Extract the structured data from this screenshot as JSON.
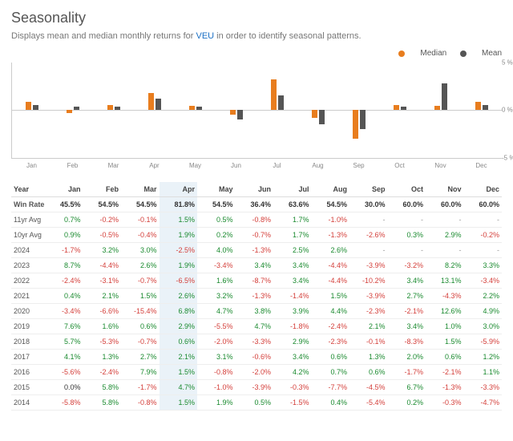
{
  "title": "Seasonality",
  "subtitle_pre": "Displays mean and median monthly returns for ",
  "ticker": "VEU",
  "subtitle_post": " in order to identify seasonal patterns.",
  "legend": {
    "median": "Median",
    "mean": "Mean"
  },
  "colors": {
    "median": "#e87d1e",
    "mean": "#555555",
    "pos": "#1a8a2f",
    "neg": "#d43f3a",
    "highlight_bg": "#eaf2f8"
  },
  "chart": {
    "months": [
      "Jan",
      "Feb",
      "Mar",
      "Apr",
      "May",
      "Jun",
      "Jul",
      "Aug",
      "Sep",
      "Oct",
      "Nov",
      "Dec"
    ],
    "ymin": -5,
    "ymax": 5,
    "ylabels": [
      "5 %",
      "0 %",
      "-5 %"
    ],
    "median": [
      0.8,
      -0.3,
      0.5,
      1.8,
      0.4,
      -0.5,
      3.2,
      -0.8,
      -3.0,
      0.5,
      0.4,
      0.8
    ],
    "mean": [
      0.5,
      0.3,
      0.3,
      1.2,
      0.3,
      -1.0,
      1.5,
      -1.5,
      -2.0,
      0.3,
      2.8,
      0.5
    ]
  },
  "table": {
    "header": [
      "Year",
      "Jan",
      "Feb",
      "Mar",
      "Apr",
      "May",
      "Jun",
      "Jul",
      "Aug",
      "Sep",
      "Oct",
      "Nov",
      "Dec"
    ],
    "highlight_col": 4,
    "rows": [
      {
        "label": "Win Rate",
        "bold": true,
        "cells": [
          "45.5%",
          "54.5%",
          "54.5%",
          "81.8%",
          "54.5%",
          "36.4%",
          "63.6%",
          "54.5%",
          "30.0%",
          "60.0%",
          "60.0%",
          "60.0%"
        ]
      },
      {
        "label": "11yr Avg",
        "cells": [
          "0.7%",
          "-0.2%",
          "-0.1%",
          "1.5%",
          "0.5%",
          "-0.8%",
          "1.7%",
          "-1.0%",
          "-",
          "-",
          "-",
          "-"
        ]
      },
      {
        "label": "10yr Avg",
        "cells": [
          "0.9%",
          "-0.5%",
          "-0.4%",
          "1.9%",
          "0.2%",
          "-0.7%",
          "1.7%",
          "-1.3%",
          "-2.6%",
          "0.3%",
          "2.9%",
          "-0.2%"
        ]
      },
      {
        "label": "2024",
        "cells": [
          "-1.7%",
          "3.2%",
          "3.0%",
          "-2.5%",
          "4.0%",
          "-1.3%",
          "2.5%",
          "2.6%",
          "-",
          "-",
          "-",
          "-"
        ]
      },
      {
        "label": "2023",
        "cells": [
          "8.7%",
          "-4.4%",
          "2.6%",
          "1.9%",
          "-3.4%",
          "3.4%",
          "3.4%",
          "-4.4%",
          "-3.9%",
          "-3.2%",
          "8.2%",
          "3.3%"
        ]
      },
      {
        "label": "2022",
        "cells": [
          "-2.4%",
          "-3.1%",
          "-0.7%",
          "-6.5%",
          "1.6%",
          "-8.7%",
          "3.4%",
          "-4.4%",
          "-10.2%",
          "3.4%",
          "13.1%",
          "-3.4%"
        ]
      },
      {
        "label": "2021",
        "cells": [
          "0.4%",
          "2.1%",
          "1.5%",
          "2.6%",
          "3.2%",
          "-1.3%",
          "-1.4%",
          "1.5%",
          "-3.9%",
          "2.7%",
          "-4.3%",
          "2.2%"
        ]
      },
      {
        "label": "2020",
        "cells": [
          "-3.4%",
          "-6.6%",
          "-15.4%",
          "6.8%",
          "4.7%",
          "3.8%",
          "3.9%",
          "4.4%",
          "-2.3%",
          "-2.1%",
          "12.6%",
          "4.9%"
        ]
      },
      {
        "label": "2019",
        "cells": [
          "7.6%",
          "1.6%",
          "0.6%",
          "2.9%",
          "-5.5%",
          "4.7%",
          "-1.8%",
          "-2.4%",
          "2.1%",
          "3.4%",
          "1.0%",
          "3.0%"
        ]
      },
      {
        "label": "2018",
        "cells": [
          "5.7%",
          "-5.3%",
          "-0.7%",
          "0.6%",
          "-2.0%",
          "-3.3%",
          "2.9%",
          "-2.3%",
          "-0.1%",
          "-8.3%",
          "1.5%",
          "-5.9%"
        ]
      },
      {
        "label": "2017",
        "cells": [
          "4.1%",
          "1.3%",
          "2.7%",
          "2.1%",
          "3.1%",
          "-0.6%",
          "3.4%",
          "0.6%",
          "1.3%",
          "2.0%",
          "0.6%",
          "1.2%"
        ]
      },
      {
        "label": "2016",
        "cells": [
          "-5.6%",
          "-2.4%",
          "7.9%",
          "1.5%",
          "-0.8%",
          "-2.0%",
          "4.2%",
          "0.7%",
          "0.6%",
          "-1.7%",
          "-2.1%",
          "1.1%"
        ]
      },
      {
        "label": "2015",
        "cells": [
          "0.0%",
          "5.8%",
          "-1.7%",
          "4.7%",
          "-1.0%",
          "-3.9%",
          "-0.3%",
          "-7.7%",
          "-4.5%",
          "6.7%",
          "-1.3%",
          "-3.3%"
        ]
      },
      {
        "label": "2014",
        "cells": [
          "-5.8%",
          "5.8%",
          "-0.8%",
          "1.5%",
          "1.9%",
          "0.5%",
          "-1.5%",
          "0.4%",
          "-5.4%",
          "0.2%",
          "-0.3%",
          "-4.7%"
        ]
      }
    ]
  }
}
